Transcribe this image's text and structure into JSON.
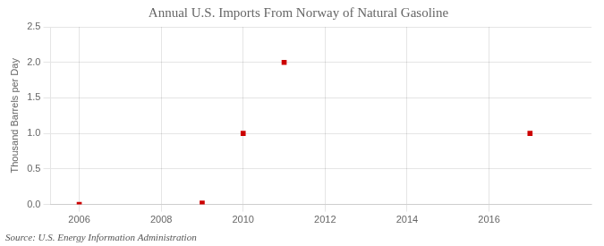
{
  "chart_data": {
    "type": "scatter",
    "title": "Annual U.S. Imports From Norway of Natural Gasoline",
    "ylabel": "Thousand Barrels per Day",
    "annotation": "Source: U.S. Energy Information Administration",
    "x": [
      2006,
      2009,
      2010,
      2011,
      2017
    ],
    "values": [
      0.0,
      0.02,
      1.0,
      2.0,
      1.0
    ],
    "color": "#cc0000",
    "marker": "square",
    "xlim": [
      2005.3,
      2018.5
    ],
    "xticks": [
      2006,
      2008,
      2010,
      2012,
      2014,
      2016
    ],
    "ylim": [
      0,
      2.5
    ],
    "yticks": [
      {
        "value": 0.0,
        "label": "0.0"
      },
      0.5,
      {
        "value": 1.0,
        "label": "1.0"
      },
      1.5,
      {
        "value": 2.0,
        "label": "2.0"
      },
      2.5
    ],
    "grid": true
  }
}
